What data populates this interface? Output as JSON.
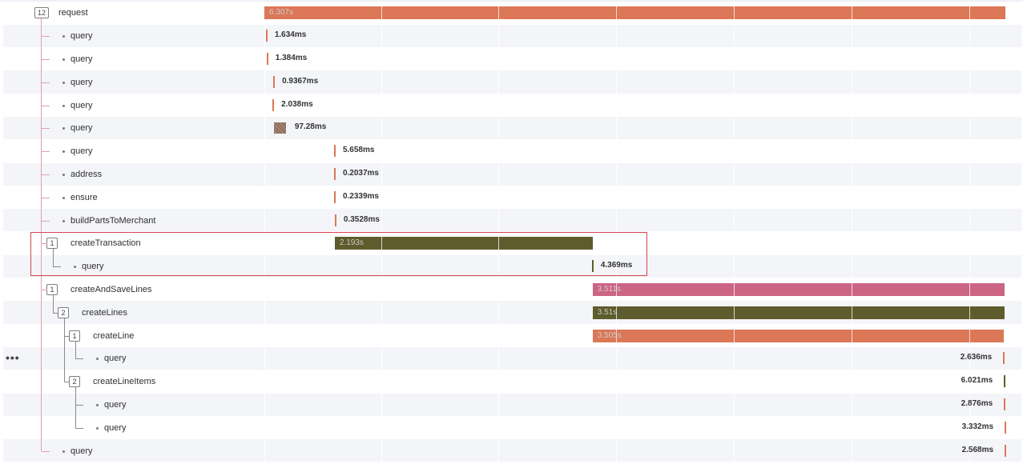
{
  "timeline": {
    "more_menu_label": "•••",
    "colors": {
      "salmon": "#dc7757",
      "pink": "#cc6585",
      "olive": "#5e5c2c",
      "brown_hatch": "#8a6d5a",
      "tree_line": "#8a8a8a",
      "highlight_border": "#d5434f"
    },
    "spans": [
      {
        "name": "request",
        "children_count": "12",
        "duration": "6.307s",
        "kind": "bar",
        "color": "salmon",
        "start_pct": 0.0,
        "width_pct": 1.0
      },
      {
        "name": "query",
        "duration": "1.634ms",
        "kind": "tick",
        "color": "salmon",
        "start_pct": 0.002
      },
      {
        "name": "query",
        "duration": "1.384ms",
        "kind": "tick",
        "color": "salmon",
        "start_pct": 0.003
      },
      {
        "name": "query",
        "duration": "0.9367ms",
        "kind": "tick",
        "color": "salmon",
        "start_pct": 0.012
      },
      {
        "name": "query",
        "duration": "2.038ms",
        "kind": "tick",
        "color": "salmon",
        "start_pct": 0.011
      },
      {
        "name": "query",
        "duration": "97.28ms",
        "kind": "hatch",
        "color": "brown_hatch",
        "start_pct": 0.013,
        "width_pct": 0.016
      },
      {
        "name": "query",
        "duration": "5.658ms",
        "kind": "tick",
        "color": "salmon",
        "start_pct": 0.094
      },
      {
        "name": "address",
        "duration": "0.2037ms",
        "kind": "tick",
        "color": "salmon",
        "start_pct": 0.094
      },
      {
        "name": "ensure",
        "duration": "0.2339ms",
        "kind": "tick",
        "color": "salmon",
        "start_pct": 0.094
      },
      {
        "name": "buildPartsToMerchant",
        "duration": "0.3528ms",
        "kind": "tick",
        "color": "salmon",
        "start_pct": 0.095
      },
      {
        "name": "createTransaction",
        "children_count": "1",
        "duration": "2.193s",
        "kind": "bar",
        "color": "olive",
        "start_pct": 0.095,
        "width_pct": 0.348
      },
      {
        "name": "query",
        "duration": "4.369ms",
        "kind": "tick",
        "color": "olive",
        "start_pct": 0.442
      },
      {
        "name": "createAndSaveLines",
        "children_count": "1",
        "duration": "3.511s",
        "kind": "bar",
        "color": "pink",
        "start_pct": 0.443,
        "width_pct": 0.556
      },
      {
        "name": "createLines",
        "children_count": "2",
        "duration": "3.51s",
        "kind": "bar",
        "color": "olive",
        "start_pct": 0.443,
        "width_pct": 0.556
      },
      {
        "name": "createLine",
        "children_count": "1",
        "duration": "3.505s",
        "kind": "bar",
        "color": "salmon",
        "start_pct": 0.443,
        "width_pct": 0.555
      },
      {
        "name": "query",
        "duration": "2.636ms",
        "kind": "tick",
        "color": "salmon",
        "start_pct": 0.997,
        "label_left": true
      },
      {
        "name": "createLineItems",
        "children_count": "2",
        "duration": "6.021ms",
        "kind": "tick",
        "color": "olive",
        "start_pct": 0.998,
        "label_left": true
      },
      {
        "name": "query",
        "duration": "2.876ms",
        "kind": "tick",
        "color": "salmon",
        "start_pct": 0.998,
        "label_left": true
      },
      {
        "name": "query",
        "duration": "3.332ms",
        "kind": "tick",
        "color": "salmon",
        "start_pct": 0.999,
        "label_left": true
      },
      {
        "name": "query",
        "duration": "2.568ms",
        "kind": "tick",
        "color": "salmon",
        "start_pct": 0.999,
        "label_left": true
      }
    ]
  }
}
